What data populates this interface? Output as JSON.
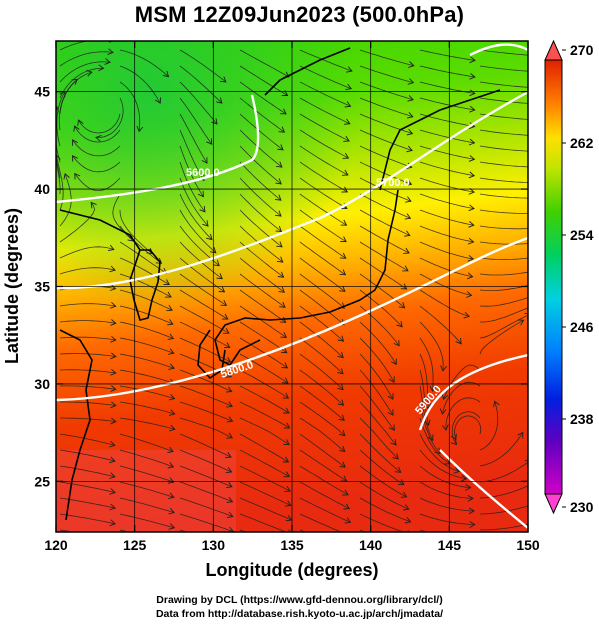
{
  "title": "MSM 12Z09Jun2023 (500.0hPa)",
  "map": {
    "x_axis_title": "Longitude (degrees)",
    "y_axis_title": "Latitude  (degrees)",
    "x_ticks": [
      "120",
      "125",
      "130",
      "135",
      "140",
      "145",
      "150"
    ],
    "y_ticks": [
      "25",
      "30",
      "35",
      "40",
      "45"
    ],
    "lon_range": [
      120,
      150
    ],
    "lat_range": [
      22.4,
      47.6
    ],
    "field": "temperature shading with streamlines and geopotential height contours",
    "contour_labels": [
      "5600.0",
      "5700.0",
      "5800.0",
      "5900.0"
    ]
  },
  "colorbar": {
    "labels": [
      "270",
      "262",
      "254",
      "246",
      "238",
      "230"
    ],
    "min": 230,
    "max": 270,
    "colors": [
      "#d000c8",
      "#3000c0",
      "#0060ff",
      "#00c8ff",
      "#00e080",
      "#30d000",
      "#a0e000",
      "#ffff00",
      "#ff8000",
      "#e02000"
    ]
  },
  "credits": {
    "line1": "Drawing by DCL (https://www.gfd-dennou.org/library/dcl/)",
    "line2": "Data from http://database.rish.kyoto-u.ac.jp/arch/jmadata/"
  }
}
